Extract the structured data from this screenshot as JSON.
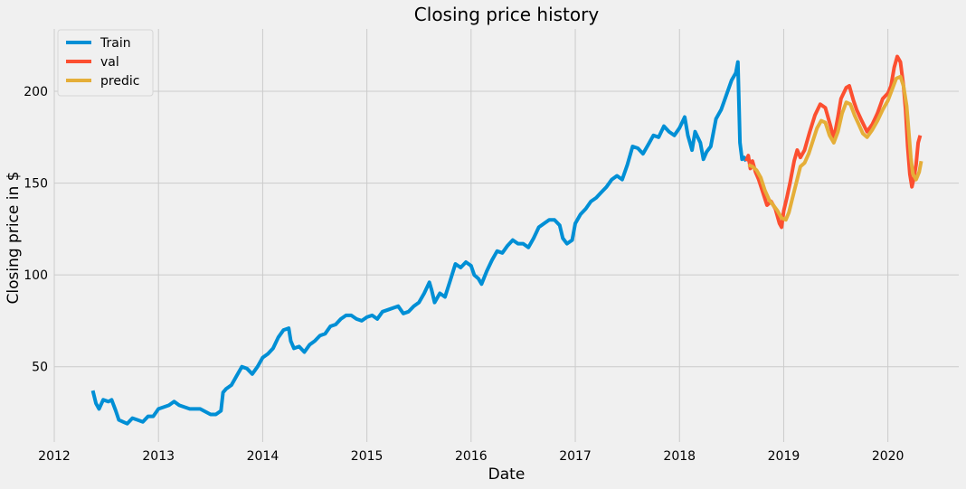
{
  "chart_data": {
    "type": "line",
    "title": "Closing price history",
    "xlabel": "Date",
    "ylabel": "Closing price in $",
    "xlim": [
      2012.0,
      2020.68
    ],
    "ylim": [
      9,
      234
    ],
    "x_ticks": [
      2012,
      2013,
      2014,
      2015,
      2016,
      2017,
      2018,
      2019,
      2020
    ],
    "x_tick_labels": [
      "2012",
      "2013",
      "2014",
      "2015",
      "2016",
      "2017",
      "2018",
      "2019",
      "2020"
    ],
    "y_ticks": [
      50,
      100,
      150,
      200
    ],
    "y_tick_labels": [
      "50",
      "100",
      "150",
      "200"
    ],
    "grid": true,
    "legend_position": "top-left",
    "colors": {
      "background": "#f0f0f0",
      "grid": "#cbcbcb"
    },
    "series": [
      {
        "name": "Train",
        "color": "#008fd5",
        "points": [
          [
            2012.37,
            37
          ],
          [
            2012.4,
            30
          ],
          [
            2012.43,
            27
          ],
          [
            2012.47,
            32
          ],
          [
            2012.52,
            31
          ],
          [
            2012.55,
            32
          ],
          [
            2012.59,
            26
          ],
          [
            2012.62,
            21
          ],
          [
            2012.66,
            20
          ],
          [
            2012.7,
            19
          ],
          [
            2012.75,
            22
          ],
          [
            2012.8,
            21
          ],
          [
            2012.85,
            20
          ],
          [
            2012.9,
            23
          ],
          [
            2012.95,
            23
          ],
          [
            2013.0,
            27
          ],
          [
            2013.05,
            28
          ],
          [
            2013.1,
            29
          ],
          [
            2013.15,
            31
          ],
          [
            2013.2,
            29
          ],
          [
            2013.3,
            27
          ],
          [
            2013.4,
            27
          ],
          [
            2013.5,
            24
          ],
          [
            2013.55,
            24
          ],
          [
            2013.6,
            26
          ],
          [
            2013.62,
            36
          ],
          [
            2013.65,
            38
          ],
          [
            2013.7,
            40
          ],
          [
            2013.75,
            45
          ],
          [
            2013.8,
            50
          ],
          [
            2013.85,
            49
          ],
          [
            2013.9,
            46
          ],
          [
            2013.95,
            50
          ],
          [
            2014.0,
            55
          ],
          [
            2014.05,
            57
          ],
          [
            2014.1,
            60
          ],
          [
            2014.15,
            66
          ],
          [
            2014.2,
            70
          ],
          [
            2014.25,
            71
          ],
          [
            2014.27,
            64
          ],
          [
            2014.3,
            60
          ],
          [
            2014.35,
            61
          ],
          [
            2014.4,
            58
          ],
          [
            2014.45,
            62
          ],
          [
            2014.5,
            64
          ],
          [
            2014.55,
            67
          ],
          [
            2014.6,
            68
          ],
          [
            2014.65,
            72
          ],
          [
            2014.7,
            73
          ],
          [
            2014.75,
            76
          ],
          [
            2014.8,
            78
          ],
          [
            2014.85,
            78
          ],
          [
            2014.9,
            76
          ],
          [
            2014.95,
            75
          ],
          [
            2015.0,
            77
          ],
          [
            2015.05,
            78
          ],
          [
            2015.1,
            76
          ],
          [
            2015.15,
            80
          ],
          [
            2015.2,
            81
          ],
          [
            2015.3,
            83
          ],
          [
            2015.35,
            79
          ],
          [
            2015.4,
            80
          ],
          [
            2015.45,
            83
          ],
          [
            2015.5,
            85
          ],
          [
            2015.55,
            90
          ],
          [
            2015.6,
            96
          ],
          [
            2015.62,
            92
          ],
          [
            2015.65,
            85
          ],
          [
            2015.7,
            90
          ],
          [
            2015.75,
            88
          ],
          [
            2015.8,
            97
          ],
          [
            2015.85,
            106
          ],
          [
            2015.9,
            104
          ],
          [
            2015.95,
            107
          ],
          [
            2016.0,
            105
          ],
          [
            2016.03,
            100
          ],
          [
            2016.07,
            98
          ],
          [
            2016.1,
            95
          ],
          [
            2016.15,
            102
          ],
          [
            2016.2,
            108
          ],
          [
            2016.25,
            113
          ],
          [
            2016.3,
            112
          ],
          [
            2016.35,
            116
          ],
          [
            2016.4,
            119
          ],
          [
            2016.45,
            117
          ],
          [
            2016.5,
            117
          ],
          [
            2016.55,
            115
          ],
          [
            2016.6,
            120
          ],
          [
            2016.65,
            126
          ],
          [
            2016.7,
            128
          ],
          [
            2016.75,
            130
          ],
          [
            2016.8,
            130
          ],
          [
            2016.85,
            127
          ],
          [
            2016.88,
            120
          ],
          [
            2016.92,
            117
          ],
          [
            2016.97,
            119
          ],
          [
            2017.0,
            128
          ],
          [
            2017.05,
            133
          ],
          [
            2017.1,
            136
          ],
          [
            2017.15,
            140
          ],
          [
            2017.2,
            142
          ],
          [
            2017.25,
            145
          ],
          [
            2017.3,
            148
          ],
          [
            2017.35,
            152
          ],
          [
            2017.4,
            154
          ],
          [
            2017.45,
            152
          ],
          [
            2017.5,
            160
          ],
          [
            2017.55,
            170
          ],
          [
            2017.6,
            169
          ],
          [
            2017.65,
            166
          ],
          [
            2017.7,
            171
          ],
          [
            2017.75,
            176
          ],
          [
            2017.8,
            175
          ],
          [
            2017.85,
            181
          ],
          [
            2017.9,
            178
          ],
          [
            2017.95,
            176
          ],
          [
            2018.0,
            180
          ],
          [
            2018.05,
            186
          ],
          [
            2018.08,
            176
          ],
          [
            2018.12,
            168
          ],
          [
            2018.15,
            178
          ],
          [
            2018.2,
            172
          ],
          [
            2018.23,
            163
          ],
          [
            2018.26,
            167
          ],
          [
            2018.3,
            170
          ],
          [
            2018.35,
            185
          ],
          [
            2018.4,
            190
          ],
          [
            2018.45,
            198
          ],
          [
            2018.5,
            206
          ],
          [
            2018.54,
            210
          ],
          [
            2018.56,
            216
          ],
          [
            2018.58,
            172
          ],
          [
            2018.6,
            163
          ],
          [
            2018.62,
            164
          ],
          [
            2018.64,
            162
          ]
        ]
      },
      {
        "name": "val",
        "color": "#fc4f30",
        "points": [
          [
            2018.64,
            162
          ],
          [
            2018.66,
            165
          ],
          [
            2018.68,
            158
          ],
          [
            2018.7,
            162
          ],
          [
            2018.73,
            156
          ],
          [
            2018.76,
            152
          ],
          [
            2018.8,
            145
          ],
          [
            2018.84,
            138
          ],
          [
            2018.88,
            140
          ],
          [
            2018.92,
            136
          ],
          [
            2018.96,
            128
          ],
          [
            2018.98,
            126
          ],
          [
            2019.0,
            135
          ],
          [
            2019.03,
            142
          ],
          [
            2019.06,
            150
          ],
          [
            2019.1,
            162
          ],
          [
            2019.13,
            168
          ],
          [
            2019.16,
            164
          ],
          [
            2019.2,
            168
          ],
          [
            2019.25,
            178
          ],
          [
            2019.3,
            187
          ],
          [
            2019.35,
            193
          ],
          [
            2019.4,
            191
          ],
          [
            2019.45,
            181
          ],
          [
            2019.48,
            174
          ],
          [
            2019.52,
            186
          ],
          [
            2019.55,
            196
          ],
          [
            2019.6,
            202
          ],
          [
            2019.63,
            203
          ],
          [
            2019.67,
            195
          ],
          [
            2019.7,
            190
          ],
          [
            2019.74,
            185
          ],
          [
            2019.8,
            178
          ],
          [
            2019.85,
            182
          ],
          [
            2019.9,
            188
          ],
          [
            2019.95,
            196
          ],
          [
            2020.0,
            199
          ],
          [
            2020.03,
            203
          ],
          [
            2020.06,
            213
          ],
          [
            2020.09,
            219
          ],
          [
            2020.12,
            216
          ],
          [
            2020.15,
            203
          ],
          [
            2020.17,
            190
          ],
          [
            2020.19,
            170
          ],
          [
            2020.21,
            155
          ],
          [
            2020.23,
            148
          ],
          [
            2020.25,
            153
          ],
          [
            2020.27,
            160
          ],
          [
            2020.29,
            172
          ],
          [
            2020.31,
            176
          ]
        ]
      },
      {
        "name": "predic",
        "color": "#e5ae38",
        "points": [
          [
            2018.66,
            160
          ],
          [
            2018.7,
            159
          ],
          [
            2018.74,
            157
          ],
          [
            2018.78,
            153
          ],
          [
            2018.82,
            146
          ],
          [
            2018.86,
            141
          ],
          [
            2018.9,
            138
          ],
          [
            2018.94,
            135
          ],
          [
            2018.98,
            131
          ],
          [
            2019.02,
            130
          ],
          [
            2019.05,
            134
          ],
          [
            2019.08,
            141
          ],
          [
            2019.12,
            150
          ],
          [
            2019.16,
            159
          ],
          [
            2019.2,
            161
          ],
          [
            2019.24,
            166
          ],
          [
            2019.28,
            173
          ],
          [
            2019.32,
            180
          ],
          [
            2019.36,
            184
          ],
          [
            2019.4,
            183
          ],
          [
            2019.44,
            176
          ],
          [
            2019.48,
            172
          ],
          [
            2019.52,
            178
          ],
          [
            2019.56,
            188
          ],
          [
            2019.6,
            194
          ],
          [
            2019.64,
            193
          ],
          [
            2019.68,
            187
          ],
          [
            2019.72,
            182
          ],
          [
            2019.76,
            177
          ],
          [
            2019.8,
            175
          ],
          [
            2019.85,
            179
          ],
          [
            2019.9,
            184
          ],
          [
            2019.95,
            190
          ],
          [
            2020.0,
            195
          ],
          [
            2020.04,
            201
          ],
          [
            2020.08,
            207
          ],
          [
            2020.12,
            208
          ],
          [
            2020.15,
            203
          ],
          [
            2020.18,
            192
          ],
          [
            2020.2,
            178
          ],
          [
            2020.22,
            164
          ],
          [
            2020.24,
            155
          ],
          [
            2020.27,
            152
          ],
          [
            2020.3,
            156
          ],
          [
            2020.32,
            162
          ]
        ]
      }
    ]
  }
}
